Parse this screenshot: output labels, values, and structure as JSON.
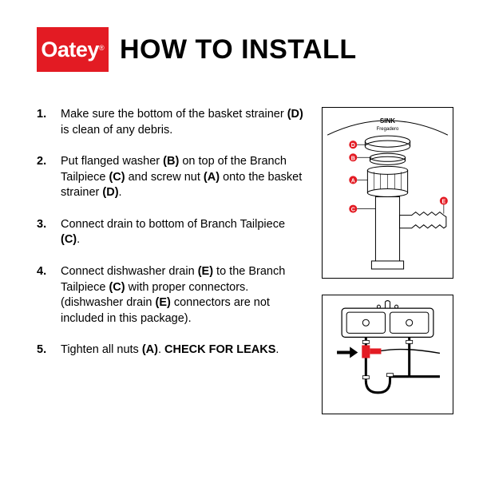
{
  "brand": {
    "name": "Oatey",
    "reg": "®",
    "bg_color": "#e31b23",
    "text_color": "#ffffff"
  },
  "title": "HOW TO INSTALL",
  "steps": [
    {
      "num": "1.",
      "html": "Make sure the bottom of the basket strainer <b>(D)</b> is clean of any debris."
    },
    {
      "num": "2.",
      "html": "Put flanged washer <b>(B)</b> on top of the Branch Tailpiece <b>(C)</b> and screw nut <b>(A)</b> onto the basket strainer <b>(D)</b>."
    },
    {
      "num": "3.",
      "html": "Connect drain to bottom of Branch Tailpiece <b>(C)</b>."
    },
    {
      "num": "4.",
      "html": "Connect dishwasher drain <b>(E)</b> to the Branch Tailpiece <b>(C)</b> with proper connectors. (dishwasher drain <b>(E)</b> connectors are not included in this package)."
    },
    {
      "num": "5.",
      "html": "Tighten all nuts <b>(A)</b>. <b>CHECK FOR LEAKS</b>."
    }
  ],
  "figures": {
    "fig1": {
      "sink_label": "SINK",
      "sink_sublabel": "Fregadero",
      "labels": [
        "D",
        "B",
        "A",
        "C",
        "E"
      ],
      "accent_color": "#e31b23"
    },
    "fig2": {
      "accent_color": "#e31b23"
    }
  },
  "colors": {
    "text": "#000000",
    "background": "#ffffff",
    "border": "#000000"
  }
}
